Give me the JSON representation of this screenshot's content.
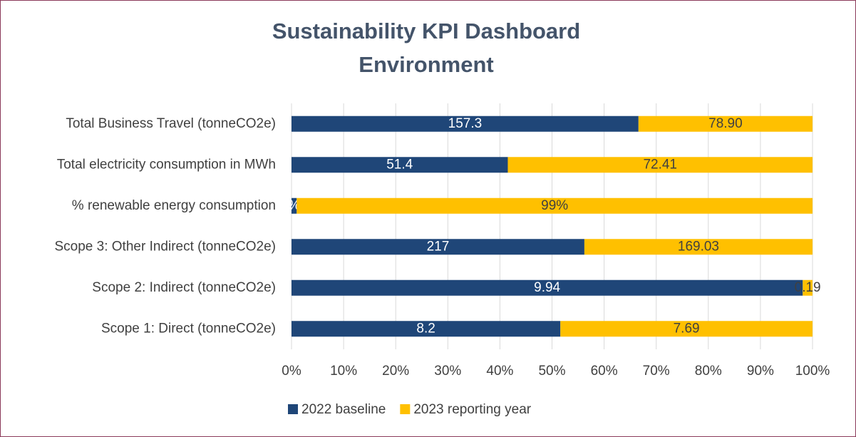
{
  "chart_data": {
    "type": "bar",
    "orientation": "horizontal",
    "stacking": "percent",
    "title": "Sustainability KPI Dashboard",
    "subtitle": "Environment",
    "categories": [
      "Total Business Travel (tonneCO2e)",
      "Total electricity consumption in MWh",
      "% renewable energy consumption",
      "Scope 3: Other Indirect (tonneCO2e)",
      "Scope 2: Indirect (tonneCO2e)",
      "Scope 1: Direct (tonneCO2e)"
    ],
    "series": [
      {
        "name": "2022 baseline",
        "color": "#1f4678",
        "label_color": "#ffffff",
        "values": [
          157.3,
          51.4,
          1,
          217,
          9.94,
          8.2
        ],
        "value_labels": [
          "157.3",
          "51.4",
          "%",
          "217",
          "9.94",
          "8.2"
        ]
      },
      {
        "name": "2023 reporting year",
        "color": "#ffc000",
        "label_color": "#404040",
        "values": [
          78.9,
          72.41,
          99,
          169.03,
          0.19,
          7.69
        ],
        "value_labels": [
          "78.90",
          "72.41",
          "99%",
          "169.03",
          "0.19",
          "7.69"
        ]
      }
    ],
    "xlim": [
      0,
      100
    ],
    "xticks": [
      {
        "value": 0,
        "label": "0%"
      },
      {
        "value": 10,
        "label": "10%"
      },
      {
        "value": 20,
        "label": "20%"
      },
      {
        "value": 30,
        "label": "30%"
      },
      {
        "value": 40,
        "label": "40%"
      },
      {
        "value": 50,
        "label": "50%"
      },
      {
        "value": 60,
        "label": "60%"
      },
      {
        "value": 70,
        "label": "70%"
      },
      {
        "value": 80,
        "label": "80%"
      },
      {
        "value": 90,
        "label": "90%"
      },
      {
        "value": 100,
        "label": "100%"
      }
    ],
    "grid": true,
    "legend": "bottom"
  }
}
